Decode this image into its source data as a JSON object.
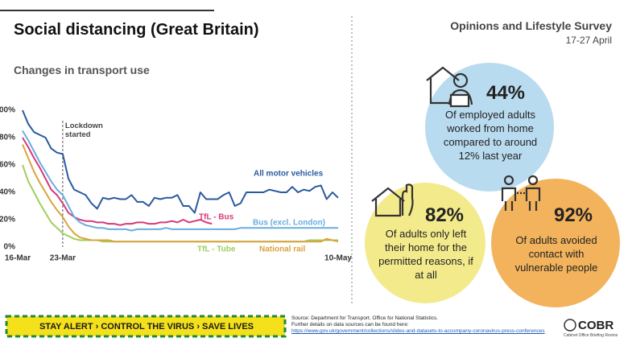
{
  "header": {
    "title": "Social distancing (Great Britain)",
    "subtitle": "Changes in transport use"
  },
  "survey": {
    "title": "Opinions and Lifestyle Survey",
    "dates": "17-27 April"
  },
  "chart_data": {
    "type": "line",
    "categories": [
      "16-Mar",
      null,
      null,
      null,
      null,
      null,
      null,
      "23-Mar",
      null,
      null,
      null,
      null,
      null,
      null,
      null,
      null,
      null,
      null,
      null,
      null,
      null,
      null,
      null,
      null,
      null,
      null,
      null,
      null,
      null,
      null,
      null,
      null,
      null,
      null,
      null,
      null,
      null,
      null,
      null,
      null,
      null,
      null,
      null,
      null,
      null,
      null,
      null,
      null,
      null,
      null,
      null,
      null,
      null,
      null,
      null,
      "10-May"
    ],
    "ylim": [
      0,
      100
    ],
    "yticks": [
      {
        "value": 0,
        "label": "0%"
      },
      {
        "value": 20,
        "label": "20%"
      },
      {
        "value": 40,
        "label": "40%"
      },
      {
        "value": 60,
        "label": "60%"
      },
      {
        "value": 80,
        "label": "80%"
      },
      {
        "value": 100,
        "label": "100%"
      }
    ],
    "annotation": {
      "text": "Lockdown started",
      "at": "23-Mar"
    },
    "series": [
      {
        "name": "All motor vehicles",
        "color": "#2b5a9e",
        "values": [
          100,
          90,
          84,
          82,
          80,
          72,
          69,
          68,
          50,
          42,
          40,
          38,
          32,
          28,
          36,
          35,
          36,
          35,
          35,
          38,
          33,
          33,
          30,
          36,
          35,
          36,
          36,
          38,
          30,
          30,
          25,
          40,
          35,
          35,
          35,
          38,
          40,
          30,
          32,
          40,
          40,
          40,
          40,
          42,
          41,
          40,
          40,
          44,
          40,
          42,
          41,
          44,
          45,
          35,
          40,
          36
        ]
      },
      {
        "name": "TfL - Bus",
        "color": "#d63a78",
        "values": [
          80,
          73,
          65,
          58,
          50,
          42,
          38,
          32,
          25,
          22,
          20,
          19,
          19,
          18,
          18,
          17,
          17,
          16,
          17,
          17,
          18,
          18,
          17,
          17,
          18,
          18,
          19,
          18,
          20,
          18,
          19,
          20,
          18,
          17,
          null,
          null,
          null,
          null,
          null,
          null,
          null,
          null,
          null,
          null,
          null,
          null,
          null,
          null,
          null,
          null,
          null,
          null,
          null,
          null,
          null,
          null
        ]
      },
      {
        "name": "Bus (excl. London)",
        "color": "#6badde",
        "values": [
          85,
          78,
          70,
          62,
          55,
          48,
          42,
          38,
          30,
          22,
          18,
          16,
          15,
          14,
          14,
          13,
          13,
          13,
          13,
          12,
          13,
          13,
          13,
          13,
          13,
          14,
          13,
          13,
          13,
          13,
          13,
          13,
          13,
          13,
          13,
          13,
          13,
          13,
          14,
          14,
          14,
          14,
          14,
          14,
          14,
          14,
          14,
          14,
          14,
          14,
          14,
          14,
          14,
          14,
          14,
          14
        ]
      },
      {
        "name": "TfL - Tube",
        "color": "#9fcf5c",
        "values": [
          60,
          48,
          40,
          32,
          25,
          18,
          14,
          10,
          8,
          6,
          5,
          5,
          5,
          5,
          4,
          4,
          4,
          4,
          4,
          4,
          4,
          4,
          4,
          4,
          4,
          4,
          4,
          4,
          4,
          4,
          4,
          4,
          4,
          4,
          4,
          4,
          4,
          4,
          4,
          4,
          4,
          4,
          4,
          4,
          4,
          4,
          4,
          4,
          4,
          4,
          5,
          5,
          5,
          5,
          5,
          5
        ]
      },
      {
        "name": "National rail",
        "color": "#d9a43c",
        "values": [
          75,
          65,
          55,
          47,
          40,
          33,
          27,
          22,
          15,
          10,
          7,
          6,
          5,
          5,
          5,
          5,
          4,
          4,
          4,
          4,
          4,
          4,
          4,
          4,
          4,
          4,
          4,
          4,
          4,
          4,
          4,
          4,
          4,
          4,
          4,
          4,
          4,
          4,
          4,
          4,
          4,
          4,
          4,
          4,
          4,
          4,
          4,
          4,
          4,
          4,
          4,
          4,
          4,
          6,
          5,
          4
        ]
      }
    ]
  },
  "stats": [
    {
      "value": "44%",
      "text": "Of employed adults worked from home compared to around 12% last year"
    },
    {
      "value": "82%",
      "text": "Of adults only left their home for the permitted reasons, if at all"
    },
    {
      "value": "92%",
      "text": "Of adults avoided contact with vulnerable people"
    }
  ],
  "banner": "STAY ALERT › CONTROL THE VIRUS › SAVE LIVES",
  "source": {
    "line1": "Source: Department for Transport. Office for National Statistics.",
    "line2": "Further details on data sources can be found here:",
    "link": "https://www.gov.uk/government/collections/slides-and-datasets-to-accompany-coronavirus-press-conferences"
  },
  "logo": {
    "name": "COBR",
    "caption": "Cabinet Office Briefing Rooms"
  }
}
